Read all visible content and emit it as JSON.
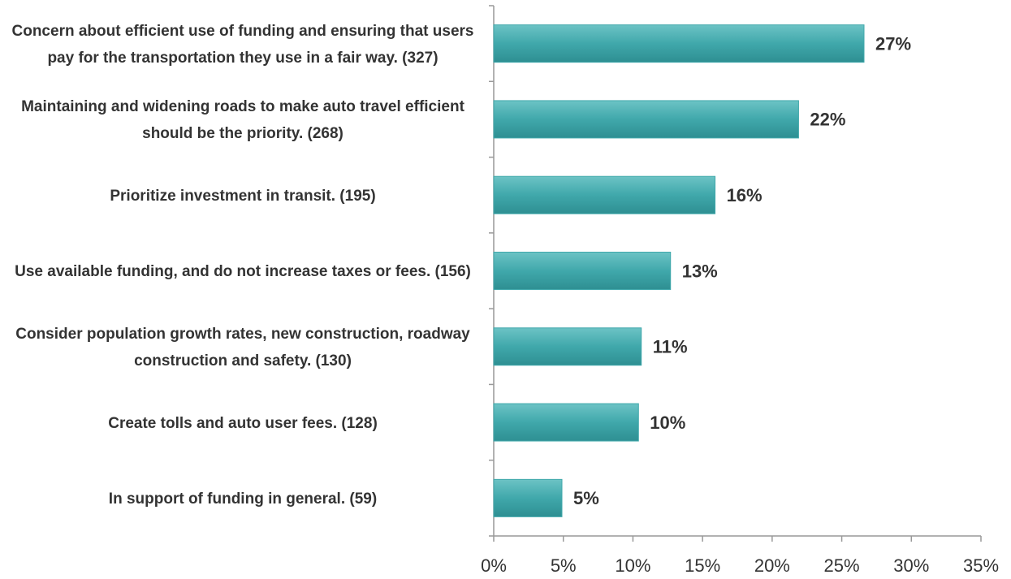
{
  "chart_data": {
    "type": "bar",
    "orientation": "horizontal",
    "categories": [
      "Concern about efficient use of funding and ensuring that users pay for the transportation they use in a fair way. (327)",
      "Maintaining and widening roads to make auto travel efficient should be the priority. (268)",
      "Prioritize investment in transit. (195)",
      "Use available funding, and do not increase taxes or fees. (156)",
      "Consider population growth rates, new construction, roadway construction and safety. (130)",
      "Create tolls and auto user fees. (128)",
      "In support of funding in general. (59)"
    ],
    "values": [
      26.6,
      21.9,
      15.9,
      12.7,
      10.6,
      10.4,
      4.9
    ],
    "value_labels": [
      "27%",
      "22%",
      "16%",
      "13%",
      "11%",
      "10%",
      "5%"
    ],
    "color": "#40a8ab",
    "xlim": [
      0,
      35
    ],
    "xticks": [
      {
        "value": 0,
        "label": "0%"
      },
      {
        "value": 5,
        "label": "5%"
      },
      {
        "value": 10,
        "label": "10%"
      },
      {
        "value": 15,
        "label": "15%"
      },
      {
        "value": 20,
        "label": "20%"
      },
      {
        "value": 25,
        "label": "25%"
      },
      {
        "value": 30,
        "label": "30%"
      },
      {
        "value": 35,
        "label": "35%"
      }
    ],
    "grid": false
  }
}
